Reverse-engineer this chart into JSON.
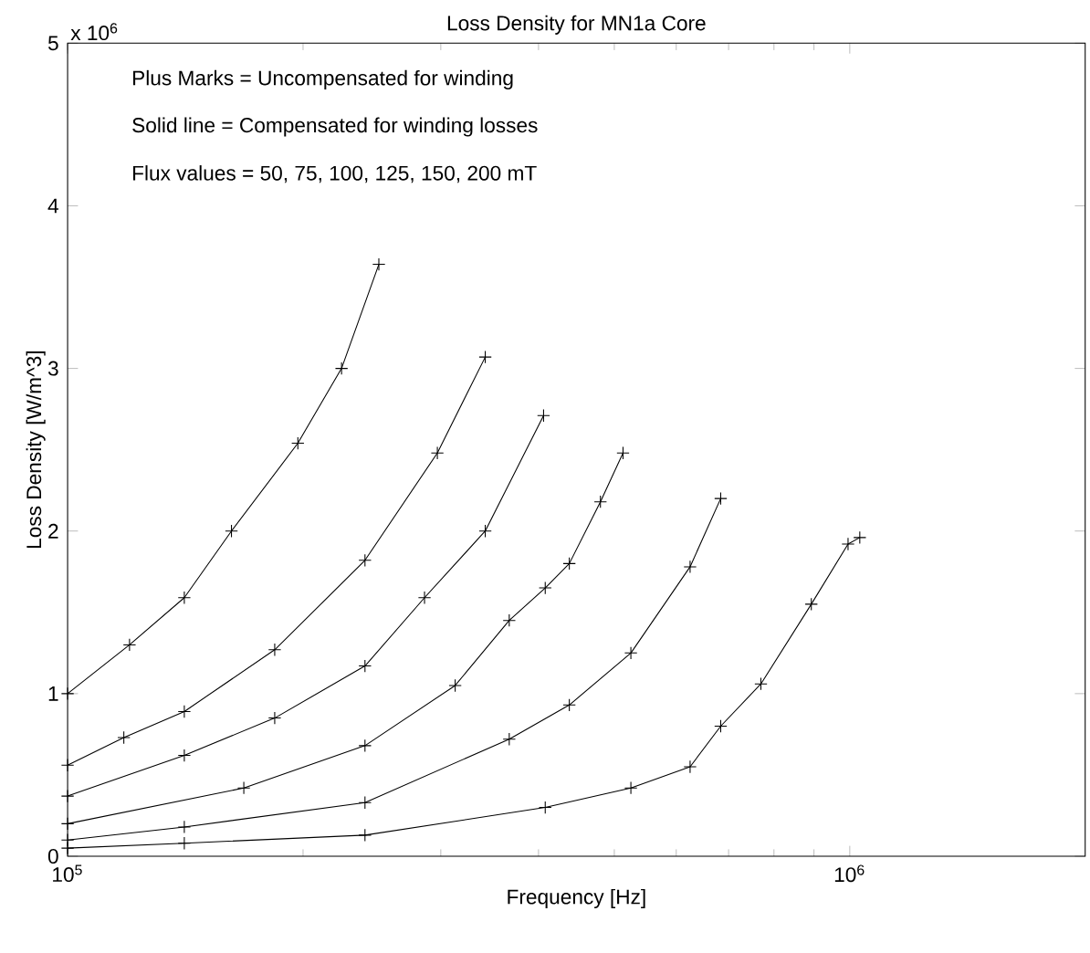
{
  "chart_data": {
    "type": "line",
    "title": "Loss Density for MN1a Core",
    "xlabel": "Frequency [Hz]",
    "ylabel": "Loss Density [W/m^3]",
    "annotations": [
      "x 10$^{6}$",
      "Plus Marks = Uncompensated for winding",
      "Solid line = Compensated for winding losses",
      "Flux values = 50, 75, 100, 125, 150, 200 mT"
    ],
    "log": "x",
    "marker": "cross",
    "line_style": "solid",
    "xlim": [
      100000,
      2000000
    ],
    "xticks": [
      {
        "value": 100000,
        "label": "10$^{5}$"
      },
      {
        "value": 1000000,
        "label": "10$^{6}$"
      }
    ],
    "ylim": [
      0,
      5
    ],
    "yticks": [
      0,
      1,
      2,
      3,
      4,
      5
    ],
    "series": [
      {
        "color": "#000000",
        "x": [
          100000,
          120000,
          141000,
          162000,
          197000,
          224000,
          250000
        ],
        "values": [
          1.0,
          1.3,
          1.59,
          2.0,
          2.54,
          3.0,
          3.64
        ]
      },
      {
        "color": "#000000",
        "x": [
          100000,
          118000,
          141000,
          184000,
          240000,
          297000,
          342000
        ],
        "values": [
          0.56,
          0.73,
          0.89,
          1.27,
          1.82,
          2.48,
          3.07
        ]
      },
      {
        "color": "#000000",
        "x": [
          100000,
          141000,
          184000,
          240000,
          286000,
          342000,
          406000
        ],
        "values": [
          0.37,
          0.62,
          0.85,
          1.17,
          1.59,
          2.0,
          2.71
        ]
      },
      {
        "color": "#000000",
        "x": [
          100000,
          168000,
          240000,
          313000,
          367000,
          408000,
          438000,
          480000,
          513000
        ],
        "values": [
          0.2,
          0.42,
          0.68,
          1.05,
          1.45,
          1.65,
          1.8,
          2.18,
          2.48
        ]
      },
      {
        "color": "#000000",
        "x": [
          100000,
          141000,
          240000,
          367000,
          438000,
          525000,
          625000,
          684000
        ],
        "values": [
          0.1,
          0.18,
          0.33,
          0.72,
          0.93,
          1.25,
          1.78,
          2.2
        ]
      },
      {
        "color": "#000000",
        "x": [
          100000,
          141000,
          240000,
          408000,
          525000,
          625000,
          684000,
          770000,
          893000,
          995000,
          1030000
        ],
        "values": [
          0.05,
          0.08,
          0.13,
          0.3,
          0.42,
          0.55,
          0.8,
          1.06,
          1.55,
          1.92,
          1.96
        ]
      }
    ]
  }
}
